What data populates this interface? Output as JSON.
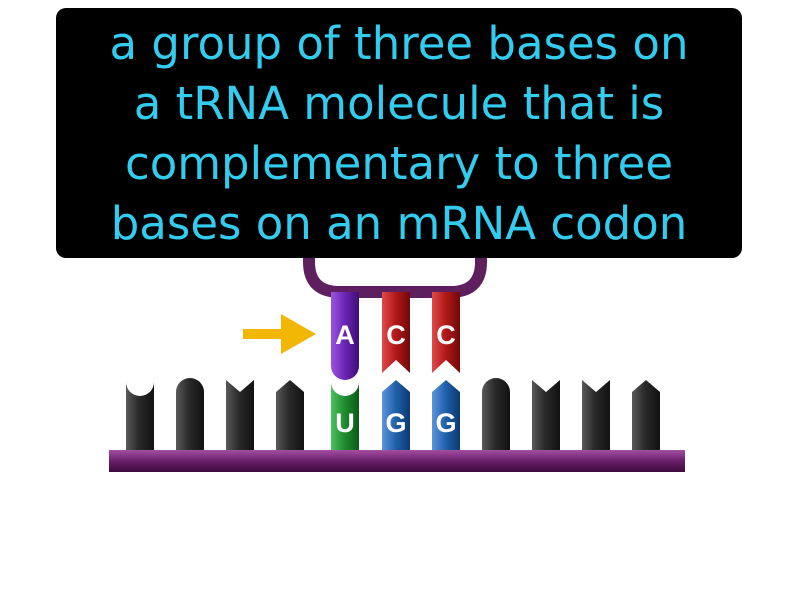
{
  "definition": {
    "lines": [
      "a group of three bases on",
      "a tRNA molecule that is",
      "complementary to three",
      "bases on an mRNA codon"
    ]
  },
  "anticodon": {
    "bases": [
      "A",
      "C",
      "C"
    ],
    "colors": [
      "#6A24B4",
      "#B01818",
      "#B01818"
    ]
  },
  "codon": {
    "bases": [
      "U",
      "G",
      "G"
    ],
    "colors": [
      "#1E8A2E",
      "#1F5FA8",
      "#1F5FA8"
    ]
  },
  "colors": {
    "text": "#33CCEE",
    "box": "#000000",
    "trna_loop": "#5E1F5E",
    "mrna_backbone": "#6B1F6B",
    "other_bases": "#2A2A2A",
    "pointer_arrow": "#F2B705"
  },
  "icons": {
    "pointer": "right-arrow-icon"
  }
}
